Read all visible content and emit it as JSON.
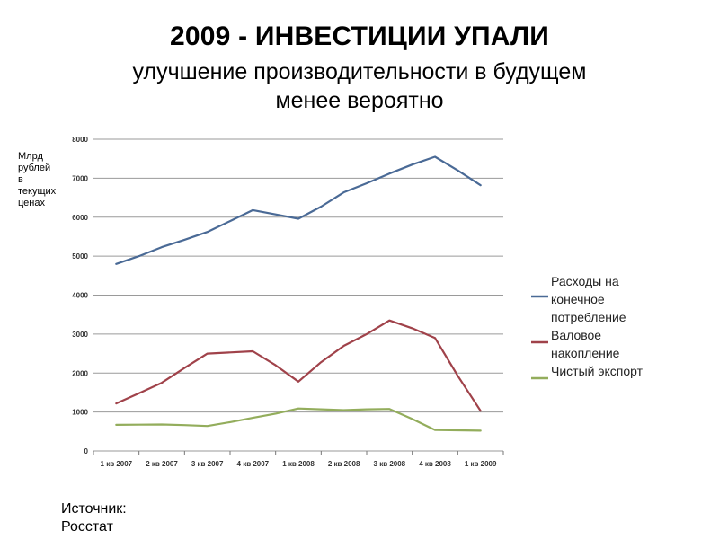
{
  "header": {
    "title": "2009 - ИНВЕСТИЦИИ УПАЛИ",
    "subtitle_line1": "улучшение производительности в будущем",
    "subtitle_line2": "менее вероятно"
  },
  "ylabel_lines": [
    "Млрд",
    "рублей",
    "в",
    "текущих",
    "ценах"
  ],
  "source_lines": [
    "Источник:",
    "Росстат"
  ],
  "colors": {
    "series1": "#4a6a96",
    "series2": "#a0424a",
    "series3": "#93ad5c",
    "grid": "#9a9a9a",
    "axis": "#777777"
  },
  "chart_data": {
    "type": "line",
    "x": [
      "1 кв 2007",
      "2 кв 2007",
      "3 кв 2007",
      "4 кв 2007",
      "1 кв 2008",
      "2 кв 2008",
      "3 кв 2008",
      "4 кв 2008",
      "1 кв 2009"
    ],
    "series": [
      {
        "name_lines": [
          "Расходы на",
          "конечное",
          "потребление"
        ],
        "color": "#4a6a96",
        "x": [
          0,
          0.5,
          1,
          1.5,
          2,
          2.5,
          3,
          3.5,
          4,
          4.5,
          5,
          5.5,
          6,
          6.5,
          7,
          7.5,
          8
        ],
        "values": [
          4800,
          5000,
          5230,
          5420,
          5620,
          5900,
          6180,
          6070,
          5960,
          6270,
          6640,
          6870,
          7120,
          7350,
          7550,
          7200,
          6820
        ]
      },
      {
        "name_lines": [
          "Валовое",
          "накопление"
        ],
        "color": "#a0424a",
        "x": [
          0,
          0.5,
          1,
          1.5,
          2,
          2.5,
          3,
          3.5,
          4,
          4.5,
          5,
          5.5,
          6,
          6.5,
          7,
          7.5,
          8
        ],
        "values": [
          1220,
          1480,
          1750,
          2130,
          2500,
          2530,
          2560,
          2200,
          1780,
          2280,
          2700,
          3000,
          3350,
          3150,
          2900,
          1930,
          1030
        ]
      },
      {
        "name_lines": [
          "Чистый экспорт"
        ],
        "color": "#93ad5c",
        "x": [
          0,
          0.5,
          1,
          1.5,
          2,
          2.5,
          3,
          3.5,
          4,
          4.5,
          5,
          5.5,
          6,
          6.5,
          7,
          7.5,
          8
        ],
        "values": [
          670,
          675,
          680,
          665,
          640,
          740,
          850,
          960,
          1090,
          1070,
          1050,
          1070,
          1080,
          820,
          540,
          530,
          520
        ]
      }
    ],
    "yticks": [
      0,
      1000,
      2000,
      3000,
      4000,
      5000,
      6000,
      7000,
      8000
    ],
    "ylim": [
      0,
      8000
    ],
    "grid": true,
    "legend": "right"
  }
}
